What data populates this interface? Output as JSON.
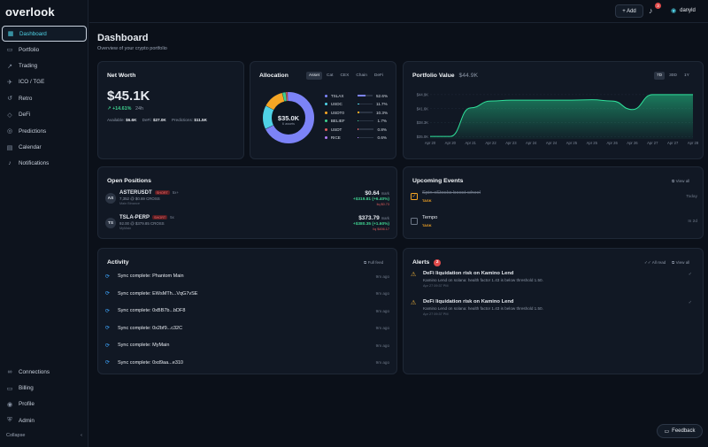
{
  "app": {
    "logo": "overlook"
  },
  "sidebar": {
    "items": [
      {
        "label": "Dashboard",
        "icon": "grid-icon",
        "glyph": "▦"
      },
      {
        "label": "Portfolio",
        "icon": "folder-icon",
        "glyph": "▭"
      },
      {
        "label": "Trading",
        "icon": "trend-icon",
        "glyph": "↗"
      },
      {
        "label": "ICO / TGE",
        "icon": "rocket-icon",
        "glyph": "✈"
      },
      {
        "label": "Retro",
        "icon": "history-icon",
        "glyph": "↺"
      },
      {
        "label": "DeFi",
        "icon": "layers-icon",
        "glyph": "◇"
      },
      {
        "label": "Predictions",
        "icon": "target-icon",
        "glyph": "◎"
      },
      {
        "label": "Calendar",
        "icon": "calendar-icon",
        "glyph": "▤"
      },
      {
        "label": "Notifications",
        "icon": "bell-icon",
        "glyph": "♪"
      }
    ],
    "bottom": [
      {
        "label": "Connections",
        "icon": "link-icon",
        "glyph": "∞"
      },
      {
        "label": "Billing",
        "icon": "card-icon",
        "glyph": "▭"
      },
      {
        "label": "Profile",
        "icon": "user-icon",
        "glyph": "◉"
      },
      {
        "label": "Admin",
        "icon": "shield-icon",
        "glyph": "⛨"
      }
    ],
    "collapse_label": "Collapse",
    "collapse_glyph": "‹"
  },
  "topbar": {
    "add_label": "+ Add",
    "bell_count": "3",
    "user_name": "danyld"
  },
  "page": {
    "title": "Dashboard",
    "subtitle": "Overview of your crypto portfolio"
  },
  "net_worth": {
    "title": "Net Worth",
    "value": "$45.1K",
    "change": "↗ +14.61%",
    "period": "24h",
    "available_label": "Available:",
    "available": "$6.6K",
    "defi_label": "DeFi:",
    "defi": "$27.0K",
    "predictions_label": "Predictions:",
    "predictions": "$11.5K"
  },
  "allocation": {
    "title": "Allocation",
    "tabs": [
      "Asset",
      "Cat",
      "CEX",
      "Chain",
      "DeFi"
    ],
    "center_value": "$35.0K",
    "center_label": "6 assets",
    "rows": [
      {
        "name": "TSLAX",
        "pct": "52.6%",
        "value": 52.6,
        "color": "#7c83f7"
      },
      {
        "name": "USDC",
        "pct": "11.7%",
        "value": 11.7,
        "color": "#4fd2e6"
      },
      {
        "name": "USDT0",
        "pct": "10.3%",
        "value": 10.3,
        "color": "#f5a524"
      },
      {
        "name": "BELIEF",
        "pct": "1.7%",
        "value": 1.7,
        "color": "#3ecf8e"
      },
      {
        "name": "USDT",
        "pct": "0.8%",
        "value": 0.8,
        "color": "#e05d5d"
      },
      {
        "name": "RICE",
        "pct": "0.6%",
        "value": 0.6,
        "color": "#b07cf7"
      }
    ]
  },
  "portfolio_value": {
    "title": "Portfolio Value",
    "value": "$44.9K",
    "ranges": [
      "7D",
      "30D",
      "1Y"
    ],
    "chart_data": {
      "type": "area",
      "x": [
        "Apr 20",
        "Apr 20",
        "Apr 21",
        "Apr 22",
        "Apr 23",
        "Apr 24",
        "Apr 24",
        "Apr 25",
        "Apr 25",
        "Apr 26",
        "Apr 26",
        "Apr 27",
        "Apr 27",
        "Apr 28"
      ],
      "values": [
        35.1,
        35.1,
        41.8,
        43.4,
        43.6,
        43.6,
        43.6,
        43.6,
        43.7,
        43.4,
        41.4,
        44.9,
        44.9,
        44.9
      ],
      "y_ticks": [
        "$44.9K",
        "$41.6K",
        "$38.3K",
        "$35.0K"
      ],
      "ylim": [
        34.5,
        45.5
      ]
    }
  },
  "open_positions": {
    "title": "Open Positions",
    "rows": [
      {
        "avatar": "AS",
        "symbol": "ASTERUSDT",
        "side": "SHORT",
        "lev": "5x+",
        "detail": "7,352 @ $0.69 CROSS",
        "venue": "Main Binance",
        "price": "$0.64",
        "mark": "mark",
        "pnl": "+$319.81 (+6.40%)",
        "liq": "liq $0.73"
      },
      {
        "avatar": "TS",
        "symbol": "TSLA-PERP",
        "side": "SHORT",
        "lev": "5x",
        "detail": "92.00 @ $379.85 CROSS",
        "venue": "MyMain",
        "price": "$373.79",
        "mark": "mark",
        "pnl": "+$380.35 (+1.60%)",
        "liq": "liq $456.17"
      }
    ]
  },
  "upcoming_events": {
    "title": "Upcoming Events",
    "view_all": "View all",
    "rows": [
      {
        "name": "Spin xStocks boost wheel",
        "tag": "TASK",
        "when": "Today",
        "done": true
      },
      {
        "name": "Tempo",
        "tag": "TASK",
        "when": "In 2d",
        "done": false
      }
    ]
  },
  "activity": {
    "title": "Activity",
    "full_feed": "Full feed",
    "rows": [
      {
        "text": "Sync complete: Phantom Main",
        "time": "9m ago"
      },
      {
        "text": "Sync complete: EWsMTh...VqG7vSE",
        "time": "9m ago"
      },
      {
        "text": "Sync complete: 0xBB7b...bDF8",
        "time": "9m ago"
      },
      {
        "text": "Sync complete: 0x2bf9...c32C",
        "time": "9m ago"
      },
      {
        "text": "Sync complete: MyMain",
        "time": "9m ago"
      },
      {
        "text": "Sync complete: 0xd9aa...e310",
        "time": "9m ago"
      }
    ]
  },
  "alerts": {
    "title": "Alerts",
    "count": "2",
    "all_read": "All read",
    "view_all": "View all",
    "rows": [
      {
        "title": "DeFi liquidation risk on Kamino Lend",
        "body": "Kamino Lend on solana: health factor 1.43 is below threshold 1.50.",
        "time": "Apr 27 09:37 PM"
      },
      {
        "title": "DeFi liquidation risk on Kamino Lend",
        "body": "Kamino Lend on solana: health factor 1.43 is below threshold 1.50.",
        "time": "Apr 27 09:37 PM"
      }
    ]
  },
  "feedback_label": "Feedback"
}
